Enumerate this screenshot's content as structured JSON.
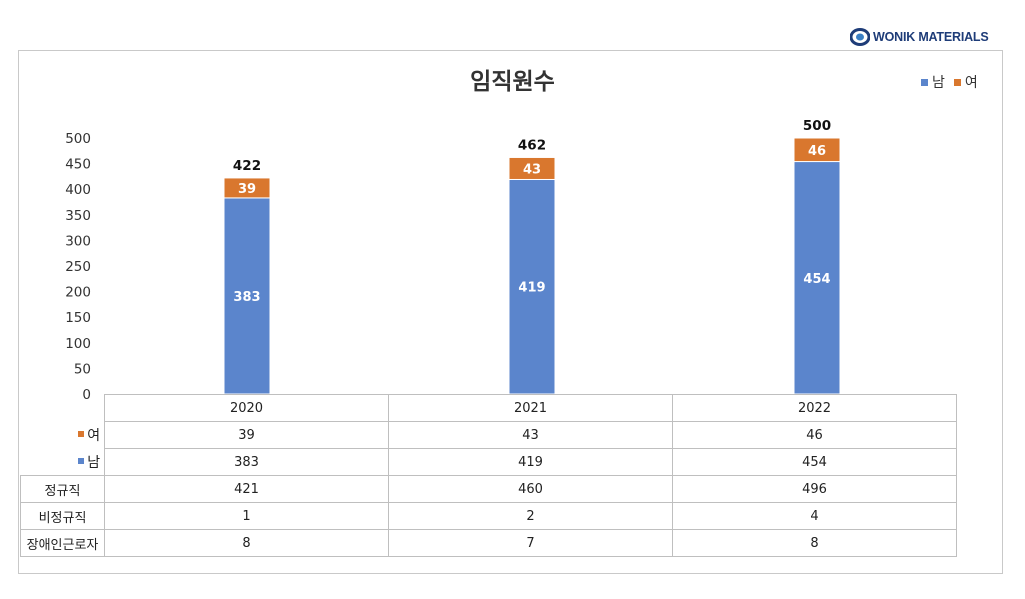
{
  "logo": {
    "text": "WONIK MATERIALS"
  },
  "chart_data": {
    "type": "bar",
    "stacked": true,
    "title": "임직원수",
    "categories": [
      "2020",
      "2021",
      "2022"
    ],
    "series": [
      {
        "name": "남",
        "color": "#5b85cc",
        "values": [
          383,
          419,
          454
        ]
      },
      {
        "name": "여",
        "color": "#d9772e",
        "values": [
          39,
          43,
          46
        ]
      }
    ],
    "totals": [
      422,
      462,
      500
    ],
    "ylim": [
      0,
      500
    ],
    "yticks": [
      0,
      50,
      100,
      150,
      200,
      250,
      300,
      350,
      400,
      450,
      500
    ],
    "legend_position": "top-right",
    "grid": false
  },
  "data_table": {
    "header": [
      "2020",
      "2021",
      "2022"
    ],
    "series_rows": [
      {
        "label": "여",
        "color": "#d9772e",
        "values": [
          "39",
          "43",
          "46"
        ]
      },
      {
        "label": "남",
        "color": "#5b85cc",
        "values": [
          "383",
          "419",
          "454"
        ]
      }
    ],
    "extra_rows": [
      {
        "label": "정규직",
        "values": [
          "421",
          "460",
          "496"
        ]
      },
      {
        "label": "비정규직",
        "values": [
          "1",
          "2",
          "4"
        ]
      },
      {
        "label": "장애인근로자",
        "values": [
          "8",
          "7",
          "8"
        ]
      }
    ]
  }
}
